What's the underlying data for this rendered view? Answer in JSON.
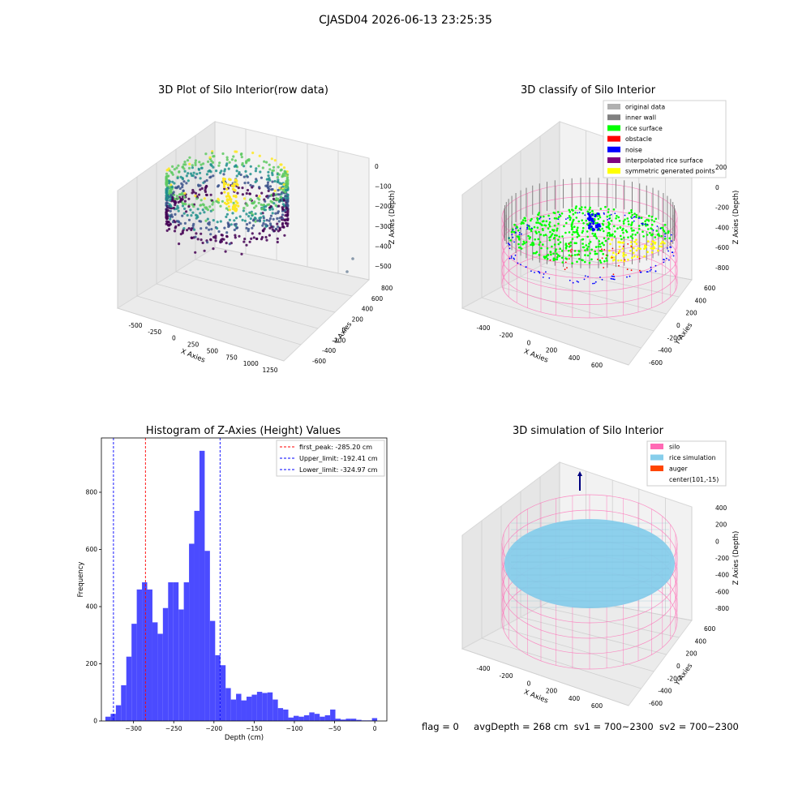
{
  "figure_title": "CJASD04 2026-06-13 23:25:35",
  "footer": {
    "flag": "flag = 0",
    "avg": "avgDepth = 268 cm",
    "sv1": "sv1 = 700~2300",
    "sv2": "sv2 = 700~2300"
  },
  "colors": {
    "viridis": [
      "#440154",
      "#3b528b",
      "#21918c",
      "#5ec962",
      "#fde725"
    ],
    "original": "#b0b0b0",
    "inner_wall": "#808080",
    "rice_surface": "#00ff00",
    "obstacle": "#ff0000",
    "noise": "#0000ff",
    "interp": "#800080",
    "symmetric": "#ffff00",
    "silo": "#ff69b4",
    "rice_sim": "#87ceeb",
    "auger": "#ff4500",
    "hist": "#4b4bff"
  },
  "chart_data": [
    {
      "type": "scatter",
      "title": "3D Plot of Silo Interior(row data)",
      "xlabel": "X Axies",
      "ylabel": "Y Axies",
      "zlabel": "Z Axies (Depth)",
      "x_ticks": [
        "-500",
        "-250",
        "0",
        "250",
        "500",
        "750",
        "1000",
        "1250"
      ],
      "y_ticks": [
        "-600",
        "-400",
        "-200",
        "0",
        "200",
        "400",
        "600",
        "800"
      ],
      "z_ticks": [
        "0",
        "−100",
        "−200",
        "−300",
        "−400",
        "−500"
      ]
    },
    {
      "type": "scatter",
      "title": "3D classify of Silo Interior",
      "xlabel": "X Axies",
      "ylabel": "Y Axies",
      "zlabel": "Z Axies (Depth)",
      "x_ticks": [
        "-400",
        "-200",
        "0",
        "200",
        "400",
        "600"
      ],
      "y_ticks": [
        "-600",
        "-400",
        "-200",
        "0",
        "200",
        "400",
        "600"
      ],
      "z_ticks": [
        "200",
        "0",
        "-200",
        "-400",
        "-600",
        "-800"
      ],
      "legend": [
        "original data",
        "inner wall",
        "rice surface",
        "obstacle",
        "noise",
        "interpolated rice surface",
        "symmetric generated points"
      ],
      "legend_placement": "top-right"
    },
    {
      "type": "bar",
      "title": "Histogram of Z-Axies (Height) Values",
      "xlabel": "Depth (cm)",
      "ylabel": "Frequency",
      "xlim": [
        -340,
        15
      ],
      "ylim": [
        0,
        990
      ],
      "x_ticks": [
        -300,
        -250,
        -200,
        -150,
        -100,
        -50,
        0
      ],
      "y_ticks": [
        0,
        200,
        400,
        600,
        800
      ],
      "bin_width": 6.5,
      "bins": [
        [
          -335,
          15
        ],
        [
          -328.5,
          25
        ],
        [
          -322,
          55
        ],
        [
          -315.5,
          125
        ],
        [
          -309,
          225
        ],
        [
          -302.5,
          340
        ],
        [
          -296,
          460
        ],
        [
          -289.5,
          485
        ],
        [
          -283,
          460
        ],
        [
          -276.5,
          345
        ],
        [
          -270,
          305
        ],
        [
          -263.5,
          395
        ],
        [
          -257,
          485
        ],
        [
          -250.5,
          485
        ],
        [
          -244,
          390
        ],
        [
          -237.5,
          485
        ],
        [
          -231,
          620
        ],
        [
          -224.5,
          735
        ],
        [
          -218,
          945
        ],
        [
          -211.5,
          595
        ],
        [
          -205,
          350
        ],
        [
          -198.5,
          230
        ],
        [
          -192,
          195
        ],
        [
          -185.5,
          115
        ],
        [
          -179,
          75
        ],
        [
          -172.5,
          95
        ],
        [
          -166,
          72
        ],
        [
          -159.5,
          85
        ],
        [
          -153,
          92
        ],
        [
          -146.5,
          102
        ],
        [
          -140,
          98
        ],
        [
          -133.5,
          100
        ],
        [
          -127,
          75
        ],
        [
          -120.5,
          45
        ],
        [
          -114,
          40
        ],
        [
          -107.5,
          12
        ],
        [
          -101,
          18
        ],
        [
          -94.5,
          15
        ],
        [
          -88,
          20
        ],
        [
          -81.5,
          30
        ],
        [
          -75,
          25
        ],
        [
          -68.5,
          15
        ],
        [
          -62,
          20
        ],
        [
          -55.5,
          40
        ],
        [
          -49,
          8
        ],
        [
          -42.5,
          5
        ],
        [
          -36,
          8
        ],
        [
          -29.5,
          8
        ],
        [
          -23,
          4
        ],
        [
          -16.5,
          2
        ],
        [
          -10,
          2
        ],
        [
          -3.5,
          10
        ]
      ],
      "vlines": [
        {
          "value": -285.2,
          "color": "#ff0000",
          "label": "first_peak: -285.20 cm"
        },
        {
          "value": -192.41,
          "color": "#0000ff",
          "label": "Upper_limit: -192.41 cm"
        },
        {
          "value": -324.97,
          "color": "#0000ff",
          "label": "Lower_limit: -324.97 cm"
        }
      ],
      "legend_placement": "top-right"
    },
    {
      "type": "scatter",
      "title": "3D simulation of Silo Interior",
      "xlabel": "X Axies",
      "ylabel": "Y Axies",
      "zlabel": "Z Axies (Depth)",
      "x_ticks": [
        "-400",
        "-200",
        "0",
        "200",
        "400",
        "600"
      ],
      "y_ticks": [
        "-600",
        "-400",
        "-200",
        "0",
        "200",
        "400",
        "600"
      ],
      "z_ticks": [
        "400",
        "200",
        "0",
        "-200",
        "-400",
        "-600",
        "-800"
      ],
      "legend": [
        "silo",
        "rice simulation",
        "auger",
        "center(101,-15)"
      ],
      "legend_placement": "top-right"
    }
  ]
}
